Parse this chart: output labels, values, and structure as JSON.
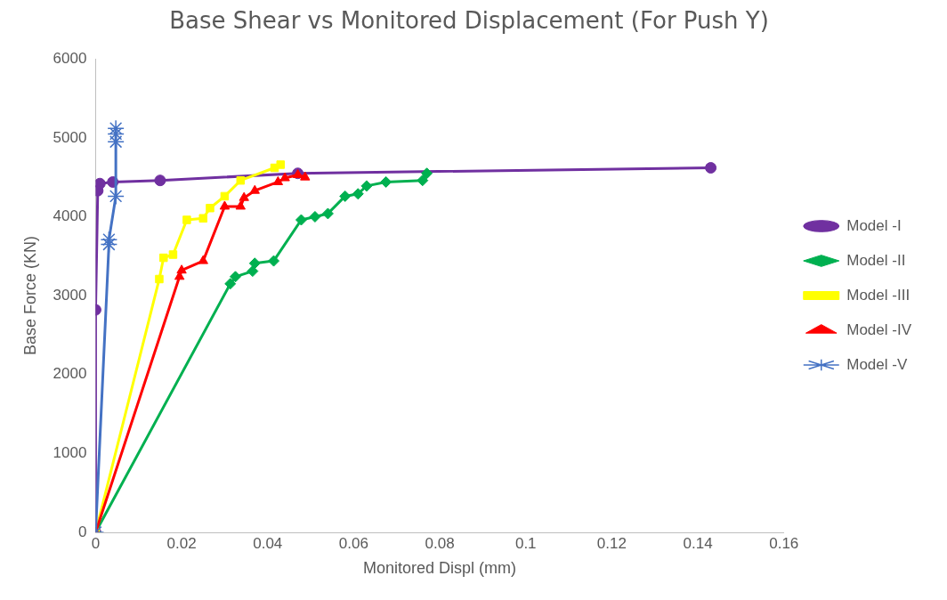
{
  "chart_data": {
    "type": "line",
    "title": "Base Shear vs Monitored Displacement (For Push Y)",
    "xlabel": "Monitored Displ (mm)",
    "ylabel": "Base Force (KN)",
    "xlim": [
      0,
      0.16
    ],
    "xticks": [
      0,
      0.02,
      0.04,
      0.06,
      0.08,
      0.1,
      0.12,
      0.14,
      0.16
    ],
    "ylim": [
      0,
      6000
    ],
    "yticks": [
      0,
      1000,
      2000,
      3000,
      4000,
      5000,
      6000
    ],
    "grid": false,
    "legend": "right",
    "line_style": "solid",
    "series": [
      {
        "name": "Model -I",
        "color": "#7030a0",
        "marker": "circle",
        "x": [
          0,
          0,
          0.0005,
          0.001,
          0.004,
          0.015,
          0.047,
          0.143
        ],
        "values": [
          0,
          2820,
          4330,
          4420,
          4440,
          4460,
          4550,
          4620
        ]
      },
      {
        "name": "Model -II",
        "color": "#00b050",
        "marker": "diamond",
        "x": [
          0,
          0.0313,
          0.0325,
          0.0365,
          0.037,
          0.0414,
          0.0478,
          0.051,
          0.054,
          0.058,
          0.061,
          0.063,
          0.0675,
          0.076,
          0.077
        ],
        "values": [
          0,
          3150,
          3240,
          3310,
          3410,
          3440,
          3960,
          4000,
          4040,
          4260,
          4290,
          4390,
          4440,
          4460,
          4550
        ]
      },
      {
        "name": "Model -III",
        "color": "#ffff00",
        "marker": "square",
        "x": [
          0,
          0.0148,
          0.0158,
          0.018,
          0.0212,
          0.025,
          0.0266,
          0.03,
          0.0337,
          0.0416,
          0.043
        ],
        "values": [
          0,
          3210,
          3480,
          3520,
          3960,
          3980,
          4110,
          4260,
          4460,
          4620,
          4660
        ]
      },
      {
        "name": "Model -IV",
        "color": "#ff0000",
        "marker": "triangle",
        "x": [
          0,
          0.0195,
          0.02,
          0.025,
          0.03,
          0.0337,
          0.0345,
          0.037,
          0.0424,
          0.044,
          0.047,
          0.0487
        ],
        "values": [
          0,
          3240,
          3320,
          3440,
          4130,
          4130,
          4240,
          4330,
          4440,
          4490,
          4530,
          4500
        ]
      },
      {
        "name": "Model -V",
        "color": "#4472c4",
        "marker": "cross",
        "x": [
          0,
          0.0031,
          0.0031,
          0.0047,
          0.0047,
          0.0047,
          0.0047
        ],
        "values": [
          0,
          3650,
          3710,
          4260,
          4950,
          5050,
          5120
        ]
      }
    ]
  }
}
